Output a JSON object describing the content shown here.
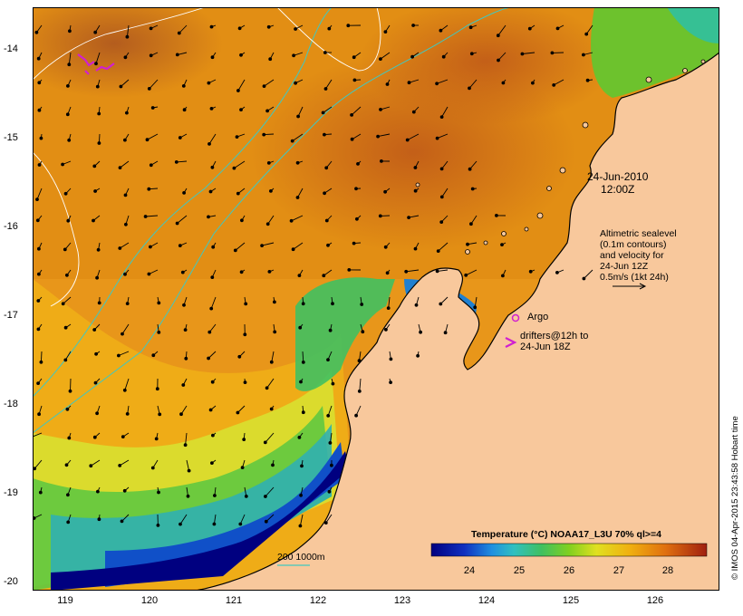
{
  "map": {
    "lat_range": [
      -20.1,
      -13.25
    ],
    "lon_range": [
      118.6,
      126.7
    ],
    "y_ticks": [
      "-14",
      "-15",
      "-16",
      "-17",
      "-18",
      "-19",
      "-20"
    ],
    "x_ticks": [
      "119",
      "120",
      "121",
      "122",
      "123",
      "124",
      "125",
      "126"
    ]
  },
  "annotations": {
    "date": "24-Jun-2010",
    "time": "12:00Z",
    "sealevel_lines": [
      "Altimetric sealevel",
      "(0.1m contours)",
      "and velocity for",
      "24-Jun 12Z",
      "0.5m/s (1kt 24h)"
    ],
    "argo_label": "Argo",
    "drifter_lines": [
      "drifters@12h to",
      "24-Jun 18Z"
    ],
    "contour_label": "200  1000m"
  },
  "colorbar": {
    "title": "Temperature (°C) NOAA17_L3U 70% ql>=4",
    "ticks": [
      "24",
      "25",
      "26",
      "27",
      "28"
    ],
    "tick_values": [
      24,
      25,
      26,
      27,
      28
    ],
    "range": [
      23.3,
      28.8
    ]
  },
  "credit": "© IMOS 04-Apr-2015 23:43:58 Hobart time",
  "colors": {
    "land": "#f8c89c",
    "warm": "#e08a10",
    "hot": "#c8681a",
    "mid": "#f0b018",
    "cool_yellow": "#d8e030",
    "green": "#40c040",
    "cyan": "#30b0b0",
    "blue": "#1040c0",
    "navy": "#000080",
    "contour": "#40c8c0",
    "argo": "#d020d0"
  }
}
